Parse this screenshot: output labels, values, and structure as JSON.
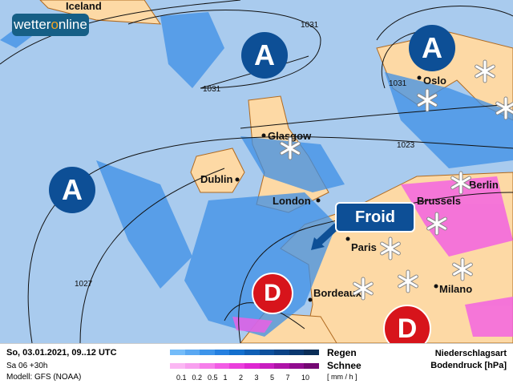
{
  "logo": {
    "text_pre": "wetter",
    "text_o": "o",
    "text_post": "nline"
  },
  "cities": [
    "Iceland",
    "Glasgow",
    "Dublin",
    "London",
    "Paris",
    "Bordeaux",
    "Oslo",
    "Milano",
    "Berlin",
    "Brussels"
  ],
  "isobars": [
    "1031",
    "1031",
    "1031",
    "1023",
    "1027"
  ],
  "pressure_centers": {
    "high": "A",
    "low": "D"
  },
  "callout": "Froid",
  "legend": {
    "date": "So, 03.01.2021, 09..12 UTC",
    "run": "Sa 06 +30h",
    "model": "Modell: GFS (NOAA)",
    "rain": "Regen",
    "snow": "Schnee",
    "unit": "[ mm / h ]",
    "ticks": [
      "0.1",
      "0.2",
      "0.5",
      "1",
      "2",
      "3",
      "5",
      "7",
      "10"
    ],
    "type": "Niederschlagsart",
    "pressure": "Bodendruck [hPa]",
    "rain_colors": [
      "#74bcf9",
      "#5aa8f2",
      "#3d94ea",
      "#2580e0",
      "#136fcd",
      "#0f5fb5",
      "#0d509c",
      "#0b4386",
      "#0a386f",
      "#0a2d57"
    ],
    "snow_colors": [
      "#fbb7f3",
      "#f8a0ef",
      "#f67eea",
      "#f25ce5",
      "#ea3fdc",
      "#de27d1",
      "#c81ec0",
      "#ae14a8",
      "#910c8f",
      "#740873"
    ]
  },
  "colors": {
    "sea": "#a9cbee",
    "land": "#fdd9a5",
    "coast": "#b06a20"
  }
}
